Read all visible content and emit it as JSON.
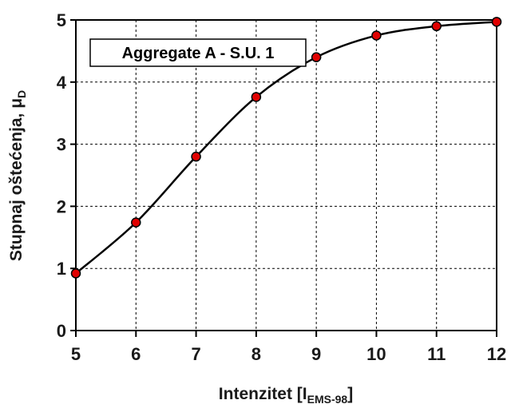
{
  "chart_data": {
    "type": "scatter",
    "annotation": "Aggregate A - S.U. 1",
    "xlabel": {
      "main": "Intenzitet [I",
      "sub": "EMS-98",
      "close": "]"
    },
    "ylabel": {
      "main": "Stupnaj oštećenja, μ",
      "sub": "D"
    },
    "xlim": [
      5,
      12
    ],
    "ylim": [
      0,
      5
    ],
    "xticks": [
      5,
      6,
      7,
      8,
      9,
      10,
      11,
      12
    ],
    "yticks": [
      0,
      1,
      2,
      3,
      4,
      5
    ],
    "grid": true,
    "series": [
      {
        "x": [
          5,
          6,
          7,
          8,
          9,
          10,
          11,
          12
        ],
        "y": [
          0.92,
          1.74,
          2.8,
          3.76,
          4.4,
          4.75,
          4.9,
          4.97
        ],
        "marker_color": "#e00000",
        "fit_curve": true
      }
    ]
  }
}
